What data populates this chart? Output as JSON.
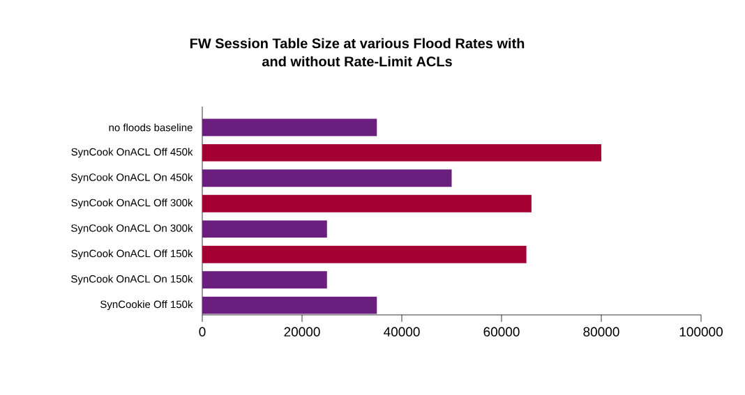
{
  "chart_data": {
    "type": "bar",
    "orientation": "horizontal",
    "title": "FW Session Table Size at various Flood Rates with and without Rate-Limit ACLs",
    "categories": [
      "no floods baseline",
      "SynCook OnACL Off 450k",
      "SynCook OnACL On 450k",
      "SynCook OnACL Off 300k",
      "SynCook OnACL On 300k",
      "SynCook OnACL Off 150k",
      "SynCook OnACL On 150k",
      "SynCookie Off 150k"
    ],
    "values": [
      35000,
      80000,
      50000,
      66000,
      25000,
      65000,
      25000,
      35000
    ],
    "colors": [
      "#6a1f7e",
      "#a50034",
      "#6a1f7e",
      "#a50034",
      "#6a1f7e",
      "#a50034",
      "#6a1f7e",
      "#6a1f7e"
    ],
    "xlim": [
      0,
      100000
    ],
    "xticks": [
      0,
      20000,
      40000,
      60000,
      80000,
      100000
    ],
    "grid": false
  }
}
